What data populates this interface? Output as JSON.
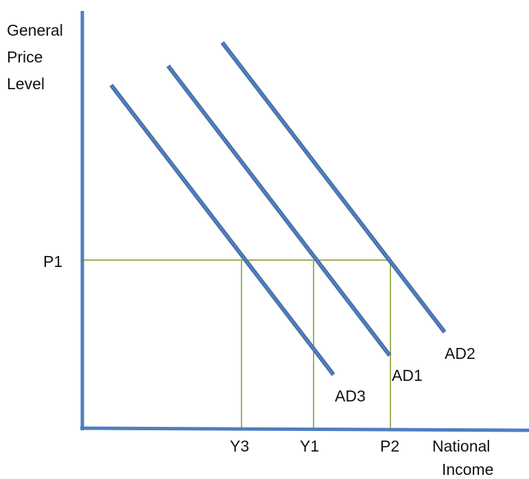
{
  "y_axis": {
    "title_lines": [
      "General",
      "Price",
      "Level"
    ]
  },
  "x_axis": {
    "title_lines": [
      "National",
      "Income"
    ]
  },
  "price_level": {
    "label": "P1"
  },
  "output_labels": [
    "Y3",
    "Y1",
    "P2"
  ],
  "curves": [
    {
      "label": "AD3"
    },
    {
      "label": "AD1"
    },
    {
      "label": "AD2"
    }
  ],
  "colors": {
    "axis": "#4f7ec0",
    "curve": "#4f7ec0",
    "curve_edge": "#3a5f8f",
    "guide": "#9bb05a"
  }
}
